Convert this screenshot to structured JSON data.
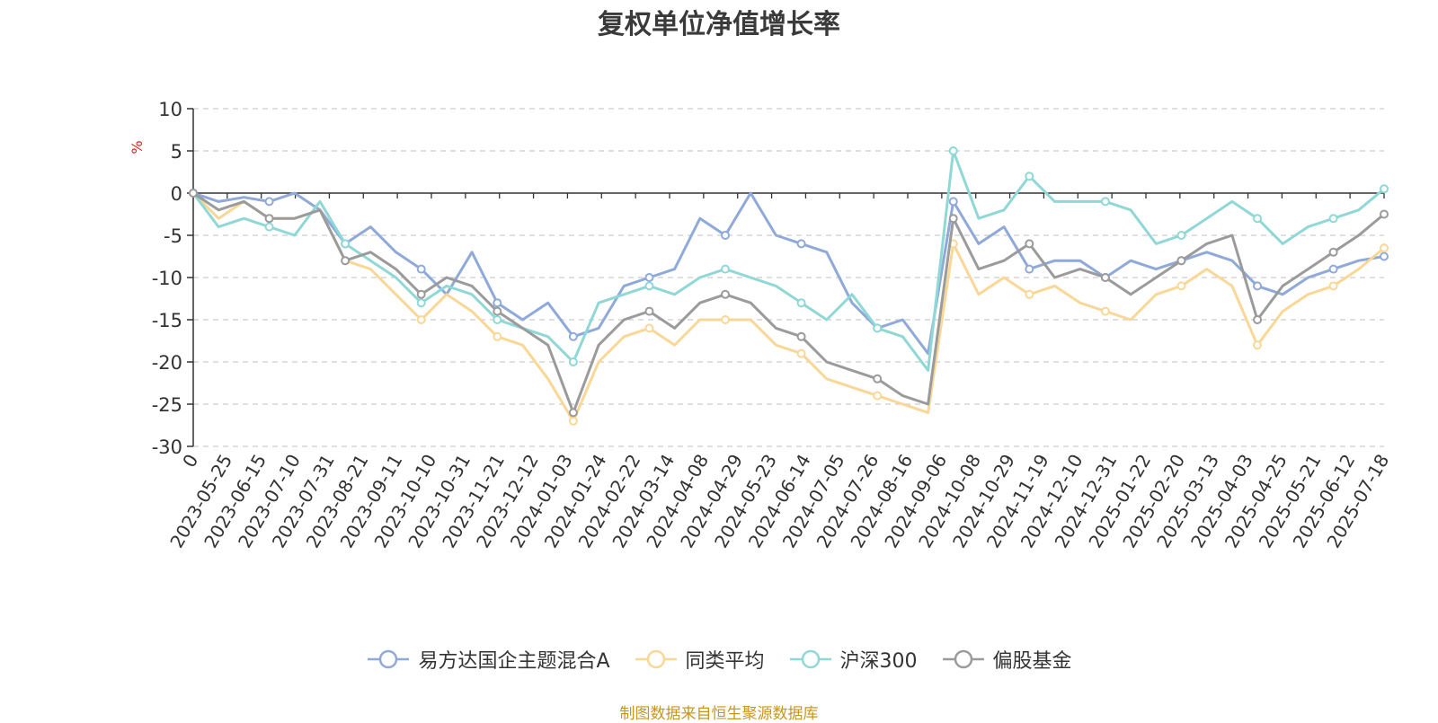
{
  "chart_data": {
    "type": "line",
    "title": "复权单位净值增长率",
    "ylabel": "%",
    "ylim": [
      -30,
      10
    ],
    "yticks": [
      10,
      5,
      0,
      -5,
      -10,
      -15,
      -20,
      -25,
      -30
    ],
    "xticks": [
      "0",
      "2023-05-25",
      "2023-06-15",
      "2023-07-10",
      "2023-07-31",
      "2023-08-21",
      "2023-09-11",
      "2023-10-10",
      "2023-10-31",
      "2023-11-21",
      "2023-12-12",
      "2024-01-03",
      "2024-01-24",
      "2024-02-22",
      "2024-03-14",
      "2024-04-08",
      "2024-04-29",
      "2024-05-23",
      "2024-06-14",
      "2024-07-05",
      "2024-07-26",
      "2024-08-16",
      "2024-09-06",
      "2024-10-08",
      "2024-10-29",
      "2024-11-19",
      "2024-12-10",
      "2024-12-31",
      "2025-01-22",
      "2025-02-20",
      "2025-03-13",
      "2025-04-03",
      "2025-04-25",
      "2025-05-21",
      "2025-06-12",
      "2025-07-18"
    ],
    "grid": true,
    "legend_position": "bottom",
    "source": "制图数据来自恒生聚源数据库",
    "series": [
      {
        "name": "易方达国企主题混合A",
        "color": "#8fa9d9",
        "values": [
          0,
          -1,
          -0.5,
          -1,
          0,
          -2,
          -6,
          -4,
          -7,
          -9,
          -12,
          -7,
          -13,
          -15,
          -13,
          -17,
          -16,
          -11,
          -10,
          -9,
          -3,
          -5,
          0,
          -5,
          -6,
          -7,
          -13,
          -16,
          -15,
          -19,
          -1,
          -6,
          -4,
          -9,
          -8,
          -8,
          -10,
          -8,
          -9,
          -8,
          -7,
          -8,
          -11,
          -12,
          -10,
          -9,
          -8,
          -7.5
        ]
      },
      {
        "name": "同类平均",
        "color": "#f9d797",
        "values": [
          0,
          -3,
          -1,
          -3,
          -3,
          -2,
          -8,
          -9,
          -12,
          -15,
          -12,
          -14,
          -17,
          -18,
          -22,
          -27,
          -20,
          -17,
          -16,
          -18,
          -15,
          -15,
          -15,
          -18,
          -19,
          -22,
          -23,
          -24,
          -25,
          -26,
          -6,
          -12,
          -10,
          -12,
          -11,
          -13,
          -14,
          -15,
          -12,
          -11,
          -9,
          -11,
          -18,
          -14,
          -12,
          -11,
          -9,
          -6.5
        ]
      },
      {
        "name": "沪深300",
        "color": "#8fd8d6",
        "values": [
          0,
          -4,
          -3,
          -4,
          -5,
          -1,
          -6,
          -8,
          -10,
          -13,
          -11,
          -12,
          -15,
          -16,
          -17,
          -20,
          -13,
          -12,
          -11,
          -12,
          -10,
          -9,
          -10,
          -11,
          -13,
          -15,
          -12,
          -16,
          -17,
          -21,
          5,
          -3,
          -2,
          2,
          -1,
          -1,
          -1,
          -2,
          -6,
          -5,
          -3,
          -1,
          -3,
          -6,
          -4,
          -3,
          -2,
          0.5
        ]
      },
      {
        "name": "偏股基金",
        "color": "#9b9b9b",
        "values": [
          0,
          -2,
          -1,
          -3,
          -3,
          -2,
          -8,
          -7,
          -9,
          -12,
          -10,
          -11,
          -14,
          -16,
          -18,
          -26,
          -18,
          -15,
          -14,
          -16,
          -13,
          -12,
          -13,
          -16,
          -17,
          -20,
          -21,
          -22,
          -24,
          -25,
          -3,
          -9,
          -8,
          -6,
          -10,
          -9,
          -10,
          -12,
          -10,
          -8,
          -6,
          -5,
          -15,
          -11,
          -9,
          -7,
          -5,
          -2.5
        ]
      }
    ]
  },
  "legend": {
    "items": [
      "易方达国企主题混合A",
      "同类平均",
      "沪深300",
      "偏股基金"
    ]
  }
}
